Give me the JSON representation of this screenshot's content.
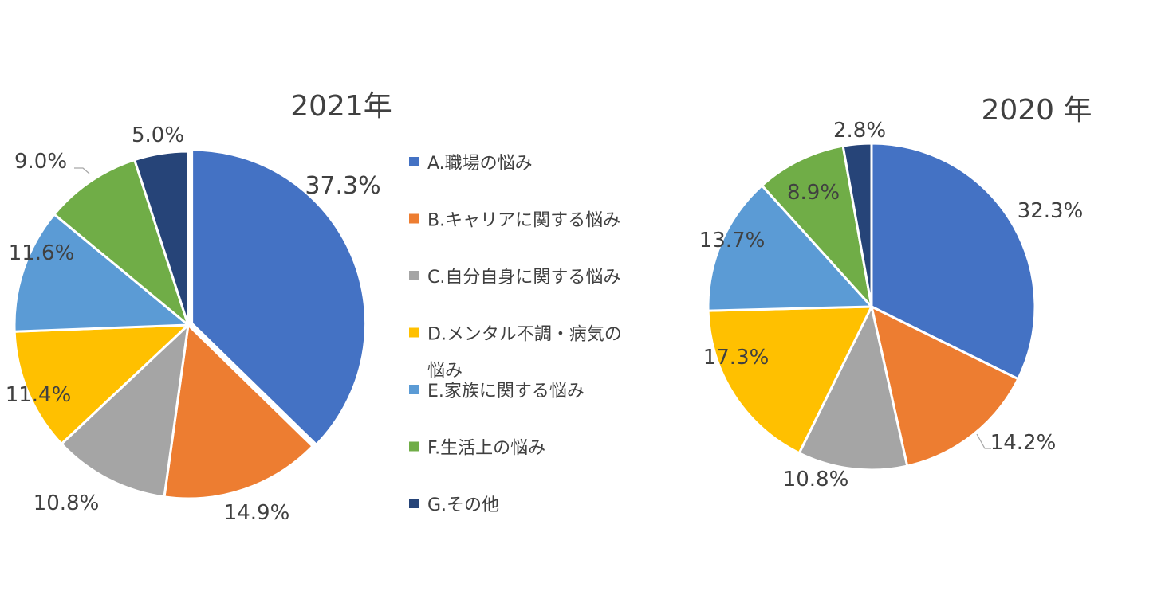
{
  "chart_data": [
    {
      "type": "pie",
      "title": "2021年",
      "categories": [
        "A.職場の悩み",
        "B.キャリアに関する悩み",
        "C.自分自身に関する悩み",
        "D.メンタル不調・病気の悩み",
        "E.家族に関する悩み",
        "F.生活上の悩み",
        "G.その他"
      ],
      "values": [
        37.3,
        14.9,
        10.8,
        11.4,
        11.6,
        9.0,
        5.0
      ],
      "data_labels": [
        "37.3%",
        "14.9%",
        "10.8%",
        "11.4%",
        "11.6%",
        "9.0%",
        "5.0%"
      ],
      "exploded": true
    },
    {
      "type": "pie",
      "title": "2020 年",
      "categories": [
        "A.職場の悩み",
        "B.キャリアに関する悩み",
        "C.自分自身に関する悩み",
        "D.メンタル不調・病気の悩み",
        "E.家族に関する悩み",
        "F.生活上の悩み",
        "G.その他"
      ],
      "values": [
        32.3,
        14.2,
        10.8,
        17.3,
        13.7,
        8.9,
        2.8
      ],
      "data_labels": [
        "32.3%",
        "14.2%",
        "10.8%",
        "17.3%",
        "13.7%",
        "8.9%",
        "2.8%"
      ],
      "exploded": false
    }
  ],
  "legend": {
    "placement": "center",
    "items": [
      {
        "line1": "A.職場の悩み",
        "line2": ""
      },
      {
        "line1": "B.キャリアに関する悩み",
        "line2": ""
      },
      {
        "line1": "C.自分自身に関する悩み",
        "line2": ""
      },
      {
        "line1": "D.メンタル不調・病気の",
        "line2": "悩み"
      },
      {
        "line1": "E.家族に関する悩み",
        "line2": ""
      },
      {
        "line1": "F.生活上の悩み",
        "line2": ""
      },
      {
        "line1": "G.その他",
        "line2": ""
      }
    ]
  },
  "colors": [
    "#4472C4",
    "#ED7D31",
    "#A5A5A5",
    "#FFC000",
    "#5B9BD5",
    "#70AD47",
    "#264478"
  ]
}
